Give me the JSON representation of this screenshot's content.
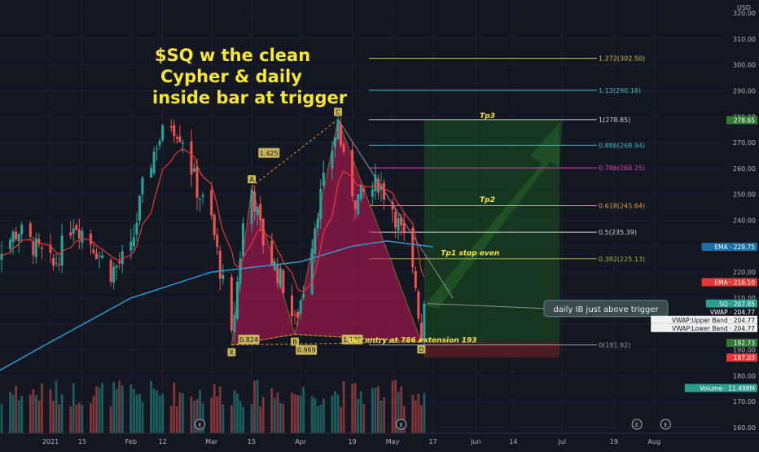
{
  "currency": "USD",
  "title_lines": [
    "$SQ w the clean",
    "Cypher & daily",
    "inside bar at trigger"
  ],
  "colors": {
    "background": "#131722",
    "candle_up": "#26a69a",
    "candle_down": "#ef5350",
    "ema": "#2b9bd4",
    "red_ma": "#e53935",
    "pattern_fill": "#c2185b",
    "pattern_stroke": "#e0a030",
    "annot_yellow": "#f7e733",
    "target_green": "#1b5e20"
  },
  "chart_data": {
    "type": "candlestick",
    "ylim": [
      158,
      322
    ],
    "y_ticks": [
      160,
      170,
      180,
      190,
      200,
      210,
      220,
      230,
      240,
      250,
      260,
      270,
      280,
      290,
      300,
      310,
      320
    ],
    "y_tick_labels": [
      "160.00",
      "170.00",
      "180.00",
      "190.00",
      "200.00",
      "210.00",
      "220.00",
      "230.00",
      "240.00",
      "250.00",
      "260.00",
      "270.00",
      "280.00",
      "290.00",
      "300.00",
      "310.00",
      "320.00"
    ],
    "x_labels": [
      {
        "label": "2021",
        "date": "2021-01-04"
      },
      {
        "label": "15",
        "date": "2021-01-15"
      },
      {
        "label": "Feb",
        "date": "2021-02-01"
      },
      {
        "label": "12",
        "date": "2021-02-12"
      },
      {
        "label": "Mar",
        "date": "2021-03-01"
      },
      {
        "label": "15",
        "date": "2021-03-15"
      },
      {
        "label": "Apr",
        "date": "2021-04-01"
      },
      {
        "label": "19",
        "date": "2021-04-19"
      },
      {
        "label": "May",
        "date": "2021-05-03"
      },
      {
        "label": "17",
        "date": "2021-05-17"
      },
      {
        "label": "Jun",
        "date": "2021-06-01"
      },
      {
        "label": "14",
        "date": "2021-06-14"
      },
      {
        "label": "Jul",
        "date": "2021-07-01"
      },
      {
        "label": "19",
        "date": "2021-07-19"
      },
      {
        "label": "Aug",
        "date": "2021-08-02"
      }
    ],
    "price_path": [
      {
        "date": "2020-12-14",
        "close": 226
      },
      {
        "date": "2020-12-24",
        "close": 236
      },
      {
        "date": "2021-01-05",
        "close": 222
      },
      {
        "date": "2021-01-12",
        "close": 240
      },
      {
        "date": "2021-01-18",
        "close": 232
      },
      {
        "date": "2021-01-25",
        "close": 220
      },
      {
        "date": "2021-02-01",
        "close": 228
      },
      {
        "date": "2021-02-05",
        "close": 252
      },
      {
        "date": "2021-02-10",
        "close": 270
      },
      {
        "date": "2021-02-15",
        "close": 278
      },
      {
        "date": "2021-02-19",
        "close": 272
      },
      {
        "date": "2021-02-24",
        "close": 252
      },
      {
        "date": "2021-03-01",
        "close": 240
      },
      {
        "date": "2021-03-05",
        "close": 215
      },
      {
        "date": "2021-03-08",
        "close": 194
      },
      {
        "date": "2021-03-12",
        "close": 238
      },
      {
        "date": "2021-03-15",
        "close": 252
      },
      {
        "date": "2021-03-19",
        "close": 232
      },
      {
        "date": "2021-03-26",
        "close": 215
      },
      {
        "date": "2021-03-30",
        "close": 200
      },
      {
        "date": "2021-04-02",
        "close": 214
      },
      {
        "date": "2021-04-07",
        "close": 245
      },
      {
        "date": "2021-04-12",
        "close": 268
      },
      {
        "date": "2021-04-14",
        "close": 278
      },
      {
        "date": "2021-04-16",
        "close": 262
      },
      {
        "date": "2021-04-20",
        "close": 248
      },
      {
        "date": "2021-04-26",
        "close": 252
      },
      {
        "date": "2021-04-28",
        "close": 255
      },
      {
        "date": "2021-05-03",
        "close": 245
      },
      {
        "date": "2021-05-07",
        "close": 232
      },
      {
        "date": "2021-05-11",
        "close": 215
      },
      {
        "date": "2021-05-13",
        "close": 195
      },
      {
        "date": "2021-05-14",
        "close": 207.85
      }
    ],
    "ema_path": [
      {
        "date": "2020-12-14",
        "value": 180
      },
      {
        "date": "2021-01-04",
        "value": 193
      },
      {
        "date": "2021-02-01",
        "value": 210
      },
      {
        "date": "2021-03-01",
        "value": 220
      },
      {
        "date": "2021-04-01",
        "value": 224
      },
      {
        "date": "2021-04-19",
        "value": 230
      },
      {
        "date": "2021-05-01",
        "value": 232
      },
      {
        "date": "2021-05-17",
        "value": 229.75
      }
    ],
    "fib_levels": [
      {
        "label": "1.272(302.50)",
        "value": 302.5,
        "color": "#d4c44a"
      },
      {
        "label": "1.13(290.16)",
        "value": 290.16,
        "color": "#45b5c4"
      },
      {
        "label": "1(278.85)",
        "value": 278.85,
        "color": "#d0d0d0"
      },
      {
        "label": "0.886(268.94)",
        "value": 268.94,
        "color": "#45b5c4"
      },
      {
        "label": "0.786(260.25)",
        "value": 260.25,
        "color": "#e040b0"
      },
      {
        "label": "0.618(245.64)",
        "value": 245.64,
        "color": "#e0a030"
      },
      {
        "label": "0.5(235.39)",
        "value": 235.39,
        "color": "#d0d0d0"
      },
      {
        "label": "0.382(225.13)",
        "value": 225.13,
        "color": "#b0b040"
      },
      {
        "label": "0(191.92)",
        "value": 191.92,
        "color": "#9e9e9e"
      }
    ],
    "pattern_points": [
      {
        "label": "X",
        "date": "2021-03-08",
        "value": 191.9
      },
      {
        "label": "A",
        "date": "2021-03-15",
        "value": 253
      },
      {
        "label": "B",
        "date": "2021-03-30",
        "value": 196
      },
      {
        "label": "C",
        "date": "2021-04-14",
        "value": 279
      },
      {
        "label": "D",
        "date": "2021-05-13",
        "value": 193
      }
    ],
    "pattern_ratios": [
      {
        "label": "1.425",
        "date": "2021-03-21",
        "value": 266
      },
      {
        "label": "0.824",
        "date": "2021-03-14",
        "value": 194
      },
      {
        "label": "1.129",
        "date": "2021-04-19",
        "value": 194
      },
      {
        "label": "0.989",
        "date": "2021-04-03",
        "value": 190
      }
    ],
    "annotations": [
      {
        "text": "Tp3",
        "date": "2021-06-05",
        "value": 279.5
      },
      {
        "text": "Tp2",
        "date": "2021-06-05",
        "value": 247
      },
      {
        "text": "Tp1 stop even",
        "date": "2021-05-30",
        "value": 226.5
      },
      {
        "text": "our entry at 786 extension 193",
        "date": "2021-05-10",
        "value": 192.8
      }
    ],
    "callout": {
      "text": "daily IB just above  trigger",
      "value": 207.85
    },
    "price_badges": [
      {
        "text": "278.65",
        "value": 278.65,
        "color": "#2e7d32"
      },
      {
        "text": "EMA · 229.75",
        "value": 229.75,
        "color": "#1e6fa8"
      },
      {
        "text": "EMA · 216.10",
        "value": 216.1,
        "color": "#e53935"
      },
      {
        "text": "SQ · 207.85",
        "value": 207.85,
        "color": "#2a9d8f"
      },
      {
        "text": "VWAP · 204.77",
        "value": 204.77,
        "color": "#131722"
      },
      {
        "text": "VWAP:Upper Band · 204.77",
        "value": 204.77,
        "color": "#f0f0f0"
      },
      {
        "text": "VWAP:Lower Band · 204.77",
        "value": 204.77,
        "color": "#f0f0f0"
      },
      {
        "text": "192.73",
        "value": 192.73,
        "color": "#2e7d32"
      },
      {
        "text": "187.03",
        "value": 187.03,
        "color": "#e53935"
      },
      {
        "text": "Volume · 11.498M",
        "value": 175.3,
        "color": "#2a9d8f"
      }
    ],
    "event_markers": [
      {
        "text": "E",
        "date": "2021-02-25"
      },
      {
        "text": "E",
        "date": "2021-05-06"
      },
      {
        "text": "E",
        "date": "2021-07-27"
      },
      {
        "text": "E",
        "date": "2021-08-06"
      }
    ],
    "target_zone": {
      "from_date": "2021-05-14",
      "to_date": "2021-06-30",
      "top": 279,
      "entry": 193,
      "stop": 187
    }
  }
}
